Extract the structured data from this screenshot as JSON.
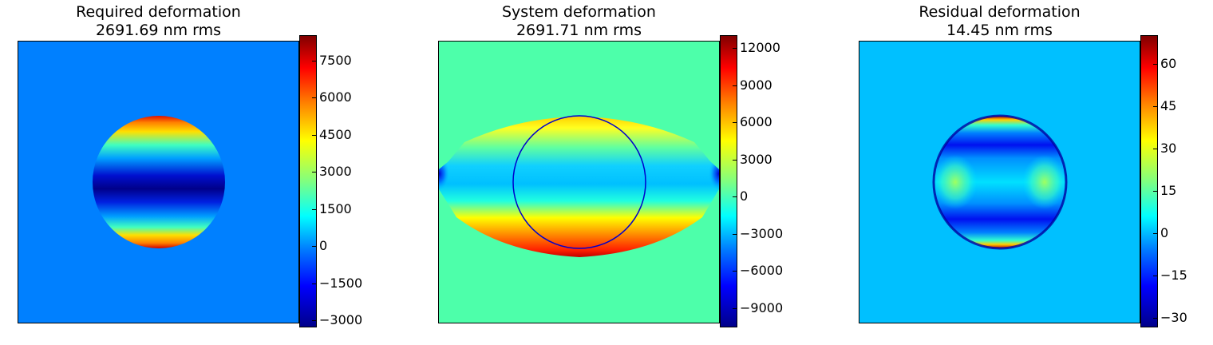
{
  "panels": [
    {
      "title_line1": "Required deformation",
      "title_line2": "2691.69 nm rms",
      "colorbar": {
        "min": -3250,
        "max": 8500,
        "ticks": [
          "7500",
          "6000",
          "4500",
          "3000",
          "1500",
          "0",
          "−1500",
          "−3000"
        ],
        "tick_values": [
          7500,
          6000,
          4500,
          3000,
          1500,
          0,
          -1500,
          -3000
        ]
      },
      "background_color": "#0080ff"
    },
    {
      "title_line1": "System deformation",
      "title_line2": "2691.71 nm rms",
      "colorbar": {
        "min": -10500,
        "max": 13000,
        "ticks": [
          "12000",
          "9000",
          "6000",
          "3000",
          "0",
          "−3000",
          "−6000",
          "−9000"
        ],
        "tick_values": [
          12000,
          9000,
          6000,
          3000,
          0,
          -3000,
          -6000,
          -9000
        ]
      },
      "background_color": "#4dffaa",
      "overlay": "blue-circle"
    },
    {
      "title_line1": "Residual deformation",
      "title_line2": "14.45 nm rms",
      "colorbar": {
        "min": -33,
        "max": 70,
        "ticks": [
          "60",
          "45",
          "30",
          "15",
          "0",
          "−15",
          "−30"
        ],
        "tick_values": [
          60,
          45,
          30,
          15,
          0,
          -15,
          -30
        ]
      },
      "background_color": "#00c0ff"
    }
  ]
}
